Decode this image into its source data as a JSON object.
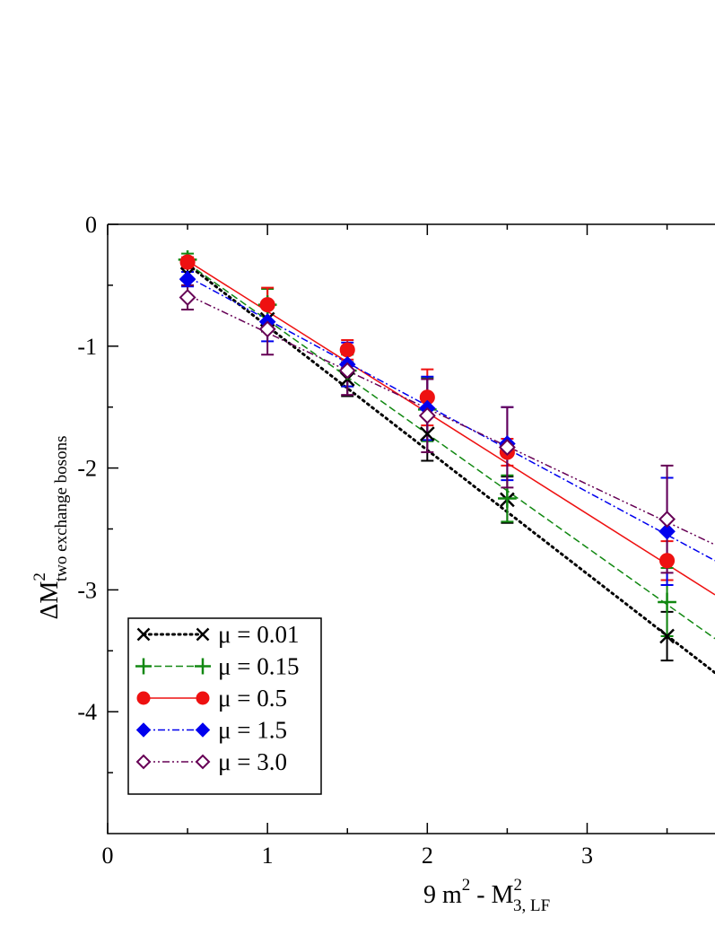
{
  "chart_data": {
    "type": "line",
    "title": "",
    "xlabel": {
      "prefix": "9 m",
      "prefix_sup": "2",
      "middle": " - M",
      "sub": "3, LF",
      "sup": "2"
    },
    "ylabel": {
      "main": "ΔM",
      "sup": "2",
      "sub": "two exchange bosons"
    },
    "xlim": [
      0,
      3.8
    ],
    "ylim": [
      -5,
      0
    ],
    "xticks": [
      0,
      1,
      2,
      3
    ],
    "yticks": [
      0,
      -1,
      -2,
      -3,
      -4
    ],
    "xtick_labels": [
      "0",
      "1",
      "2",
      "3"
    ],
    "ytick_labels": [
      "0",
      "-1",
      "-2",
      "-3",
      "-4"
    ],
    "grid": false,
    "legend_position": "bottom-left",
    "series": [
      {
        "name": "μ = 0.01",
        "color": "#000000",
        "marker": "x",
        "line": "dotted",
        "x": [
          0.5,
          1.0,
          1.5,
          2.0,
          2.5,
          3.5
        ],
        "y": [
          -0.41,
          -0.78,
          -1.27,
          -1.72,
          -2.26,
          -3.38
        ],
        "err": [
          0.05,
          0.1,
          0.14,
          0.22,
          0.19,
          0.2
        ],
        "fit": [
          [
            0.5,
            -0.33
          ],
          [
            3.8,
            -3.68
          ]
        ]
      },
      {
        "name": "μ = 0.15",
        "color": "#118811",
        "marker": "plus",
        "line": "dashed",
        "x": [
          0.5,
          1.0,
          1.5,
          2.0,
          2.5,
          3.5
        ],
        "y": [
          -0.29,
          -0.66,
          -1.2,
          -1.52,
          -2.25,
          -3.1
        ],
        "err": [
          0.05,
          0.13,
          0.13,
          0.26,
          0.19,
          0.28
        ],
        "fit": [
          [
            0.5,
            -0.32
          ],
          [
            3.8,
            -3.4
          ]
        ]
      },
      {
        "name": "μ = 0.5",
        "color": "#ee1111",
        "marker": "circle",
        "line": "solid",
        "x": [
          0.5,
          1.0,
          1.5,
          2.0,
          2.5,
          3.5
        ],
        "y": [
          -0.31,
          -0.66,
          -1.03,
          -1.42,
          -1.87,
          -2.76
        ],
        "err": [
          0.04,
          0.14,
          0.08,
          0.23,
          0.11,
          0.16
        ],
        "fit": [
          [
            0.5,
            -0.3
          ],
          [
            3.8,
            -3.04
          ]
        ]
      },
      {
        "name": "μ = 1.5",
        "color": "#0000ee",
        "marker": "diamond",
        "line": "dashdot",
        "x": [
          0.5,
          1.0,
          1.5,
          2.0,
          2.5,
          3.5
        ],
        "y": [
          -0.45,
          -0.8,
          -1.15,
          -1.51,
          -1.8,
          -2.52
        ],
        "err": [
          0.06,
          0.16,
          0.18,
          0.26,
          0.3,
          0.44
        ],
        "fit": [
          [
            0.5,
            -0.43
          ],
          [
            3.8,
            -2.76
          ]
        ]
      },
      {
        "name": "μ = 3.0",
        "color": "#660055",
        "marker": "diamond-open",
        "line": "dashdotdot",
        "x": [
          0.5,
          1.0,
          1.5,
          2.0,
          2.5,
          3.5
        ],
        "y": [
          -0.6,
          -0.86,
          -1.2,
          -1.57,
          -1.83,
          -2.42
        ],
        "err": [
          0.1,
          0.21,
          0.2,
          0.3,
          0.33,
          0.44
        ],
        "fit": [
          [
            0.5,
            -0.58
          ],
          [
            3.8,
            -2.63
          ]
        ]
      }
    ]
  }
}
